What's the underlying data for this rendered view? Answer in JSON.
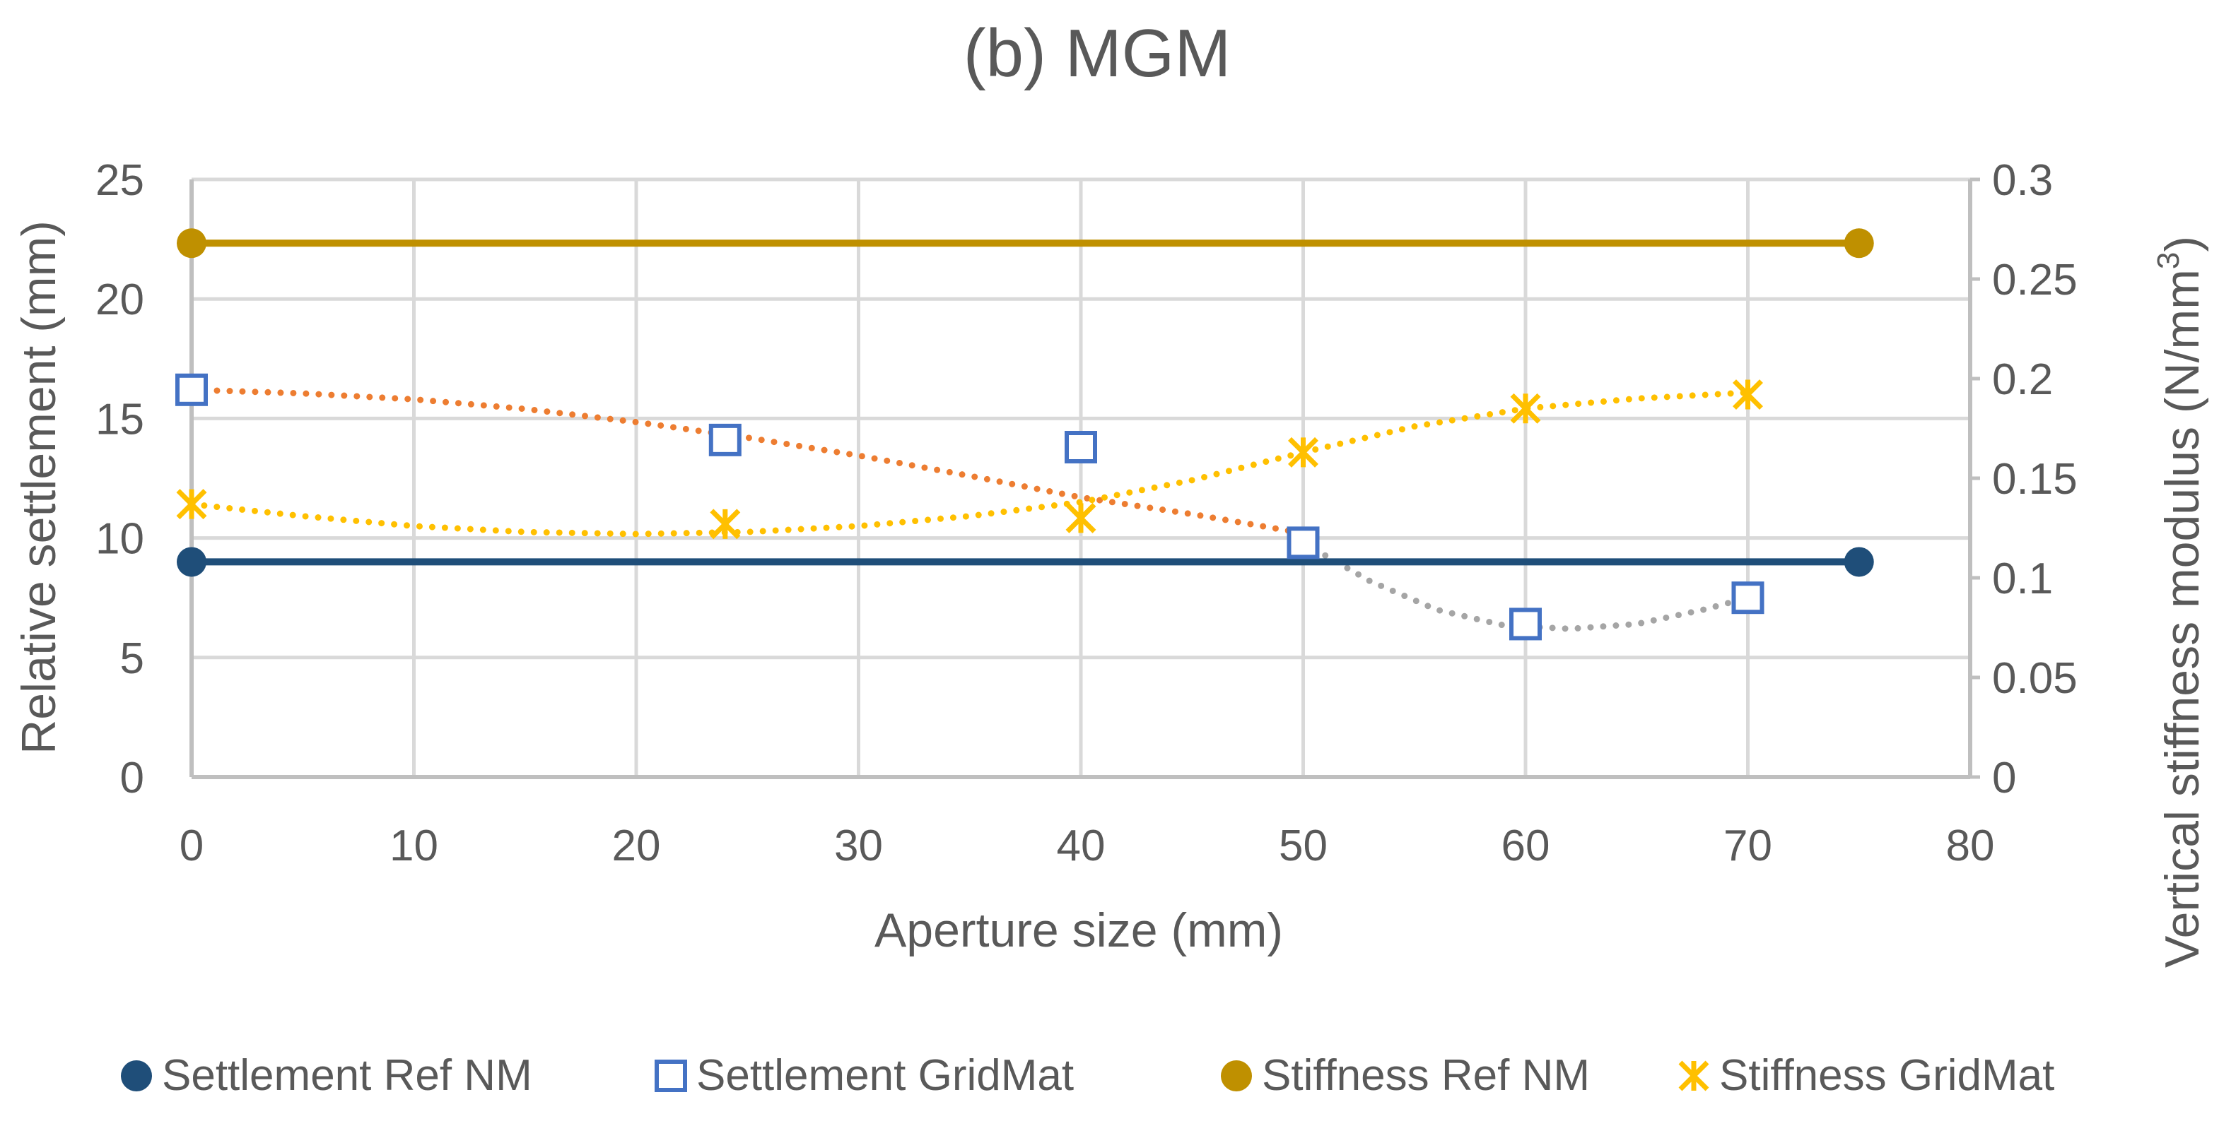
{
  "chart_data": {
    "type": "line",
    "title": "(b) MGM",
    "xlabel": "Aperture size (mm)",
    "ylabel": "Relative settlement (mm)",
    "y2label": "Vertical stiffness modulus (N/mm",
    "y2label_sup": "3",
    "y2label_end": ")",
    "xlim": [
      0,
      80
    ],
    "ylim": [
      0,
      25
    ],
    "y2lim": [
      0,
      0.3
    ],
    "xticks": [
      "0",
      "10",
      "20",
      "30",
      "40",
      "50",
      "60",
      "70",
      "80"
    ],
    "yticks": [
      "0",
      "5",
      "10",
      "15",
      "20",
      "25"
    ],
    "y2ticks": [
      "0",
      "0.05",
      "0.1",
      "0.15",
      "0.2",
      "0.25",
      "0.3"
    ],
    "grid": true,
    "legend_position": "bottom",
    "series": [
      {
        "name": "Settlement Ref NM",
        "axis": "left",
        "marker": "circle",
        "color": "#1F4E79",
        "line": "solid",
        "x": [
          0,
          75
        ],
        "y": [
          9,
          9
        ]
      },
      {
        "name": "Settlement GridMat",
        "axis": "left",
        "marker": "open-square",
        "color": "#4472C4",
        "line": "none",
        "x": [
          0,
          24,
          40,
          50,
          60,
          70
        ],
        "y": [
          16.2,
          14.1,
          13.8,
          9.8,
          6.4,
          7.5
        ]
      },
      {
        "name": "Stiffness Ref NM",
        "axis": "right",
        "marker": "circle",
        "color": "#BF9000",
        "line": "solid",
        "x": [
          0,
          75
        ],
        "y": [
          0.268,
          0.268
        ]
      },
      {
        "name": "Stiffness GridMat",
        "axis": "right",
        "marker": "asterisk",
        "color": "#FFC000",
        "line": "none",
        "x": [
          0,
          24,
          40,
          50,
          60,
          70
        ],
        "y": [
          0.137,
          0.127,
          0.13,
          0.163,
          0.185,
          0.192
        ]
      }
    ],
    "trendlines": [
      {
        "name": "settlement-trend-1",
        "color": "#ED7D31",
        "style": "dotted",
        "axis": "left",
        "x": [
          0,
          5,
          10,
          15,
          20,
          25,
          30,
          35,
          40,
          45,
          50
        ],
        "y": [
          16.2,
          16.05,
          15.8,
          15.4,
          14.85,
          14.2,
          13.45,
          12.6,
          11.7,
          11.0,
          10.2
        ]
      },
      {
        "name": "settlement-trend-2",
        "color": "#A5A5A5",
        "style": "dotted",
        "axis": "left",
        "x": [
          50,
          53,
          56,
          59,
          62,
          65,
          68,
          70
        ],
        "y": [
          9.8,
          8.2,
          7.0,
          6.35,
          6.2,
          6.4,
          7.0,
          7.5
        ]
      },
      {
        "name": "stiffness-trend",
        "color": "#FFC000",
        "style": "dotted",
        "axis": "right",
        "x": [
          0,
          5,
          10,
          15,
          20,
          25,
          30,
          35,
          40,
          45,
          50,
          55,
          60,
          65,
          70
        ],
        "y": [
          0.137,
          0.131,
          0.126,
          0.123,
          0.122,
          0.123,
          0.126,
          0.131,
          0.138,
          0.149,
          0.163,
          0.176,
          0.185,
          0.19,
          0.193
        ]
      }
    ]
  }
}
